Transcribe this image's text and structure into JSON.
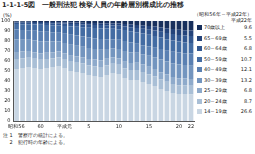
{
  "chart_data": {
    "type": "bar",
    "title": "1-1-1-5図　一般刑法犯 検挙人員の年齢層別構成比の推移",
    "subtitle": "（昭和56年～平成22年）",
    "ylabel": "(%)",
    "legend_title": "平成22年",
    "notes": [
      "注 1　警察庁の統計による。",
      "　 2　犯行時の年齢による。"
    ],
    "stacked": true,
    "grid": false,
    "legend": "right",
    "categories": [
      "昭和56",
      null,
      null,
      null,
      "60",
      null,
      null,
      null,
      "平成元",
      null,
      null,
      null,
      "5",
      null,
      null,
      null,
      null,
      "10",
      null,
      null,
      null,
      null,
      "15",
      null,
      null,
      null,
      null,
      "20",
      null,
      "22"
    ],
    "ylim": [
      0,
      100
    ],
    "yticks": [
      0,
      10,
      20,
      30,
      40,
      50,
      60,
      70,
      80,
      90,
      100
    ],
    "series": [
      {
        "name": "14～19歳",
        "color": "#c9d6e3",
        "values": [
          52,
          53,
          54,
          53,
          52,
          53,
          54,
          55,
          53,
          50,
          49,
          48,
          46,
          45,
          44,
          46,
          48,
          47,
          43,
          41,
          41,
          39,
          37,
          35,
          32,
          30,
          28,
          27,
          27,
          26.6
        ]
      },
      {
        "name": "20～24歳",
        "color": "#a9bfd6",
        "values": [
          10.0,
          9.6,
          9.3,
          9.2,
          9.3,
          9.0,
          8.8,
          8.6,
          8.9,
          9.2,
          9.3,
          9.4,
          9.6,
          9.8,
          10.0,
          9.6,
          9.2,
          9.2,
          9.6,
          10.0,
          10.0,
          10.0,
          9.8,
          9.6,
          9.4,
          9.2,
          9.0,
          8.8,
          8.7,
          8.7
        ]
      },
      {
        "name": "25～29歳",
        "color": "#8eaacb",
        "values": [
          7.0,
          6.8,
          6.6,
          6.5,
          6.4,
          6.2,
          6.0,
          5.8,
          5.8,
          6.0,
          6.2,
          6.3,
          6.5,
          6.6,
          6.7,
          6.6,
          6.4,
          6.4,
          6.7,
          7.0,
          7.2,
          7.4,
          7.5,
          7.5,
          7.4,
          7.2,
          7.0,
          6.9,
          6.8,
          6.8
        ]
      },
      {
        "name": "30～39歳",
        "color": "#7395bf",
        "values": [
          12.5,
          11.9,
          11.4,
          11.8,
          12.0,
          11.3,
          10.7,
          10.0,
          10.3,
          11.0,
          10.8,
          10.6,
          10.8,
          10.7,
          10.6,
          9.8,
          9.2,
          9.5,
          10.6,
          10.6,
          10.0,
          10.4,
          10.9,
          11.6,
          12.8,
          13.2,
          13.8,
          13.9,
          13.4,
          13.2
        ]
      },
      {
        "name": "40～49歳",
        "color": "#5a80b2",
        "values": [
          10.0,
          9.6,
          9.4,
          9.7,
          10.0,
          9.7,
          9.3,
          8.8,
          9.3,
          10.1,
          10.1,
          10.1,
          10.5,
          10.6,
          10.7,
          9.8,
          9.0,
          9.2,
          10.0,
          9.8,
          9.0,
          9.0,
          9.2,
          9.5,
          10.3,
          10.7,
          11.5,
          11.9,
          11.9,
          12.1
        ]
      },
      {
        "name": "50～59歳",
        "color": "#436ca3",
        "values": [
          5.5,
          5.8,
          6.0,
          6.2,
          6.5,
          6.8,
          7.0,
          7.3,
          7.8,
          8.3,
          8.8,
          9.3,
          9.8,
          10.2,
          10.6,
          10.6,
          10.4,
          10.5,
          11.0,
          11.4,
          11.6,
          11.8,
          11.9,
          11.8,
          11.6,
          11.4,
          11.1,
          10.9,
          10.8,
          10.7
        ]
      },
      {
        "name": "60～64歳",
        "color": "#325790",
        "values": [
          1.5,
          1.6,
          1.6,
          1.7,
          1.8,
          1.9,
          2.0,
          2.1,
          2.3,
          2.5,
          2.7,
          2.9,
          3.1,
          3.2,
          3.3,
          3.3,
          3.3,
          3.4,
          3.6,
          3.9,
          4.2,
          4.6,
          5.0,
          5.4,
          5.8,
          6.3,
          6.6,
          6.7,
          6.8,
          6.8
        ]
      },
      {
        "name": "65～69歳",
        "color": "#24437a",
        "values": [
          0.8,
          0.9,
          0.9,
          1.0,
          1.0,
          1.1,
          1.1,
          1.2,
          1.3,
          1.4,
          1.5,
          1.6,
          1.7,
          1.8,
          1.9,
          2.0,
          2.1,
          2.2,
          2.5,
          2.8,
          3.1,
          3.4,
          3.7,
          4.0,
          4.3,
          4.7,
          5.0,
          5.2,
          5.4,
          5.5
        ]
      },
      {
        "name": "70歳以上",
        "color": "#172f5c",
        "values": [
          0.7,
          0.8,
          0.8,
          0.9,
          1.0,
          1.0,
          1.1,
          1.2,
          1.3,
          1.5,
          1.6,
          1.8,
          2.0,
          2.1,
          2.2,
          2.3,
          2.4,
          2.6,
          3.0,
          3.5,
          3.9,
          4.4,
          5.0,
          5.6,
          6.4,
          7.3,
          8.0,
          8.7,
          9.2,
          9.6
        ]
      }
    ]
  }
}
